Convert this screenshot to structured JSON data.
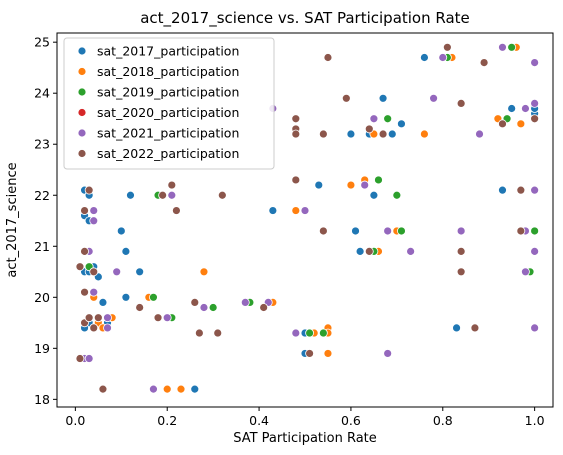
{
  "chart_data": {
    "type": "scatter",
    "title": "act_2017_science vs. SAT Participation Rate",
    "xlabel": "SAT Participation Rate",
    "ylabel": "act_2017_science",
    "xlim": [
      -0.04,
      1.04
    ],
    "ylim": [
      17.85,
      25.18
    ],
    "x_ticks": [
      0.0,
      0.2,
      0.4,
      0.6,
      0.8,
      1.0
    ],
    "x_tick_labels": [
      "0.0",
      "0.2",
      "0.4",
      "0.6",
      "0.8",
      "1.0"
    ],
    "y_ticks": [
      18,
      19,
      20,
      21,
      22,
      23,
      24,
      25
    ],
    "y_tick_labels": [
      "18",
      "19",
      "20",
      "21",
      "22",
      "23",
      "24",
      "25"
    ],
    "grid": false,
    "legend_position": "top-left",
    "series": [
      {
        "name": "sat_2017_participation",
        "color": "#1f77b4",
        "points": [
          [
            0.02,
            22.1
          ],
          [
            0.03,
            22.0
          ],
          [
            0.02,
            21.6
          ],
          [
            0.03,
            21.5
          ],
          [
            0.04,
            20.6
          ],
          [
            0.02,
            20.5
          ],
          [
            0.03,
            20.5
          ],
          [
            0.05,
            20.4
          ],
          [
            0.06,
            19.9
          ],
          [
            0.05,
            19.6
          ],
          [
            0.07,
            19.5
          ],
          [
            0.03,
            19.5
          ],
          [
            0.02,
            19.4
          ],
          [
            0.1,
            21.3
          ],
          [
            0.11,
            20.9
          ],
          [
            0.11,
            20.0
          ],
          [
            0.12,
            22.0
          ],
          [
            0.14,
            20.5
          ],
          [
            0.26,
            18.2
          ],
          [
            0.43,
            21.7
          ],
          [
            0.5,
            19.3
          ],
          [
            0.5,
            18.9
          ],
          [
            0.53,
            22.2
          ],
          [
            0.6,
            23.2
          ],
          [
            0.61,
            21.3
          ],
          [
            0.62,
            20.9
          ],
          [
            0.64,
            23.2
          ],
          [
            0.65,
            22.0
          ],
          [
            0.67,
            23.9
          ],
          [
            0.69,
            23.2
          ],
          [
            0.71,
            23.4
          ],
          [
            0.76,
            24.7
          ],
          [
            0.83,
            19.4
          ],
          [
            0.93,
            22.1
          ],
          [
            0.95,
            23.7
          ],
          [
            1.0,
            23.5
          ],
          [
            1.0,
            23.6
          ],
          [
            1.0,
            23.7
          ]
        ]
      },
      {
        "name": "sat_2018_participation",
        "color": "#ff7f0e",
        "points": [
          [
            0.03,
            20.6
          ],
          [
            0.04,
            20.0
          ],
          [
            0.05,
            19.5
          ],
          [
            0.06,
            19.4
          ],
          [
            0.08,
            19.6
          ],
          [
            0.16,
            20.0
          ],
          [
            0.2,
            18.2
          ],
          [
            0.23,
            18.2
          ],
          [
            0.28,
            20.5
          ],
          [
            0.3,
            19.8
          ],
          [
            0.43,
            19.9
          ],
          [
            0.48,
            21.7
          ],
          [
            0.52,
            19.3
          ],
          [
            0.55,
            19.4
          ],
          [
            0.55,
            18.9
          ],
          [
            0.55,
            19.3
          ],
          [
            0.6,
            22.2
          ],
          [
            0.63,
            22.3
          ],
          [
            0.65,
            23.2
          ],
          [
            0.66,
            20.9
          ],
          [
            0.7,
            21.3
          ],
          [
            0.76,
            23.2
          ],
          [
            0.82,
            24.7
          ],
          [
            0.92,
            23.5
          ],
          [
            0.96,
            24.9
          ],
          [
            0.97,
            23.4
          ],
          [
            1.0,
            23.5
          ]
        ]
      },
      {
        "name": "sat_2019_participation",
        "color": "#2ca02c",
        "points": [
          [
            0.03,
            20.6
          ],
          [
            0.04,
            19.4
          ],
          [
            0.09,
            20.5
          ],
          [
            0.17,
            20.0
          ],
          [
            0.18,
            22.0
          ],
          [
            0.21,
            19.6
          ],
          [
            0.3,
            19.8
          ],
          [
            0.38,
            19.9
          ],
          [
            0.51,
            19.3
          ],
          [
            0.54,
            19.3
          ],
          [
            0.63,
            22.2
          ],
          [
            0.65,
            20.9
          ],
          [
            0.66,
            22.3
          ],
          [
            0.68,
            23.5
          ],
          [
            0.7,
            22.0
          ],
          [
            0.71,
            21.3
          ],
          [
            0.81,
            24.7
          ],
          [
            0.94,
            23.5
          ],
          [
            0.95,
            24.9
          ],
          [
            0.99,
            20.5
          ],
          [
            1.0,
            21.3
          ]
        ]
      },
      {
        "name": "sat_2020_participation",
        "color": "#d62728",
        "points": []
      },
      {
        "name": "sat_2021_participation",
        "color": "#9467bd",
        "points": [
          [
            0.02,
            18.8
          ],
          [
            0.03,
            18.8
          ],
          [
            0.03,
            20.9
          ],
          [
            0.04,
            21.7
          ],
          [
            0.04,
            21.5
          ],
          [
            0.04,
            20.1
          ],
          [
            0.05,
            19.6
          ],
          [
            0.07,
            19.4
          ],
          [
            0.07,
            19.6
          ],
          [
            0.09,
            20.5
          ],
          [
            0.17,
            18.2
          ],
          [
            0.2,
            19.6
          ],
          [
            0.21,
            22.0
          ],
          [
            0.28,
            19.8
          ],
          [
            0.37,
            19.9
          ],
          [
            0.42,
            19.9
          ],
          [
            0.43,
            23.7
          ],
          [
            0.48,
            19.3
          ],
          [
            0.5,
            21.7
          ],
          [
            0.63,
            22.2
          ],
          [
            0.65,
            23.5
          ],
          [
            0.68,
            21.3
          ],
          [
            0.68,
            18.9
          ],
          [
            0.73,
            20.9
          ],
          [
            0.78,
            23.9
          ],
          [
            0.8,
            24.7
          ],
          [
            0.84,
            21.3
          ],
          [
            0.88,
            23.2
          ],
          [
            0.93,
            24.9
          ],
          [
            0.98,
            21.3
          ],
          [
            0.98,
            20.5
          ],
          [
            0.98,
            23.7
          ],
          [
            1.0,
            24.6
          ],
          [
            1.0,
            23.8
          ],
          [
            1.0,
            22.1
          ],
          [
            1.0,
            20.9
          ],
          [
            1.0,
            19.4
          ]
        ]
      },
      {
        "name": "sat_2022_participation",
        "color": "#8c564b",
        "points": [
          [
            0.01,
            18.8
          ],
          [
            0.01,
            20.6
          ],
          [
            0.02,
            20.1
          ],
          [
            0.02,
            19.5
          ],
          [
            0.02,
            20.9
          ],
          [
            0.02,
            21.7
          ],
          [
            0.03,
            22.1
          ],
          [
            0.03,
            19.6
          ],
          [
            0.04,
            19.4
          ],
          [
            0.04,
            20.5
          ],
          [
            0.05,
            19.6
          ],
          [
            0.06,
            18.2
          ],
          [
            0.14,
            19.8
          ],
          [
            0.18,
            19.6
          ],
          [
            0.19,
            22.0
          ],
          [
            0.21,
            22.2
          ],
          [
            0.22,
            21.7
          ],
          [
            0.26,
            19.9
          ],
          [
            0.27,
            19.3
          ],
          [
            0.31,
            19.3
          ],
          [
            0.32,
            22.0
          ],
          [
            0.41,
            19.8
          ],
          [
            0.48,
            23.5
          ],
          [
            0.48,
            23.3
          ],
          [
            0.48,
            22.3
          ],
          [
            0.48,
            23.2
          ],
          [
            0.51,
            18.9
          ],
          [
            0.54,
            21.3
          ],
          [
            0.54,
            23.2
          ],
          [
            0.55,
            24.7
          ],
          [
            0.59,
            23.9
          ],
          [
            0.64,
            20.9
          ],
          [
            0.64,
            23.3
          ],
          [
            0.67,
            23.2
          ],
          [
            0.81,
            24.9
          ],
          [
            0.84,
            23.8
          ],
          [
            0.84,
            20.9
          ],
          [
            0.84,
            20.5
          ],
          [
            0.87,
            19.4
          ],
          [
            0.93,
            23.4
          ],
          [
            0.97,
            22.1
          ],
          [
            0.97,
            21.3
          ],
          [
            0.89,
            24.6
          ],
          [
            1.0,
            23.5
          ]
        ]
      }
    ]
  }
}
